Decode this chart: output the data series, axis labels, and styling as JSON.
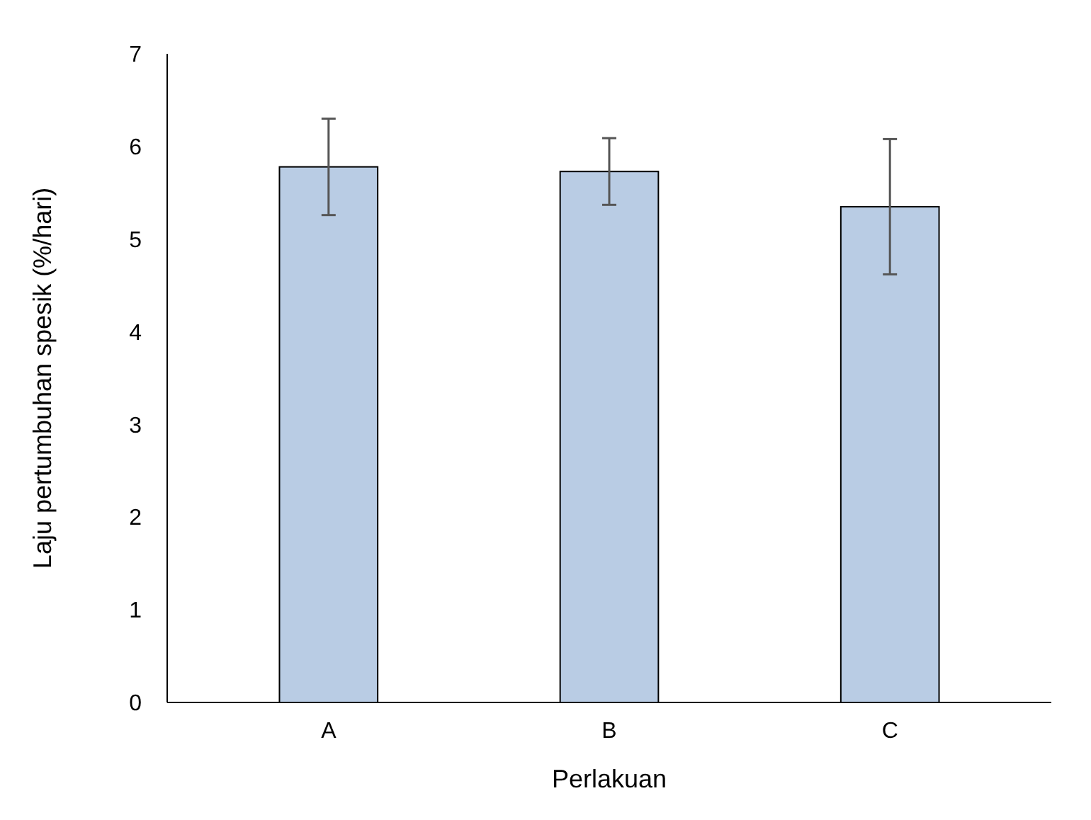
{
  "chart_data": {
    "type": "bar",
    "xlabel": "Perlakuan",
    "ylabel": "Laju pertumbuhan spesik (%/hari)",
    "categories": [
      "A",
      "B",
      "C"
    ],
    "values": [
      5.78,
      5.73,
      5.35
    ],
    "errors": [
      0.52,
      0.36,
      0.73
    ],
    "color": "#b9cce4",
    "ylim": [
      0,
      7
    ],
    "yticks": [
      0,
      1,
      2,
      3,
      4,
      5,
      6,
      7
    ],
    "grid": false
  }
}
